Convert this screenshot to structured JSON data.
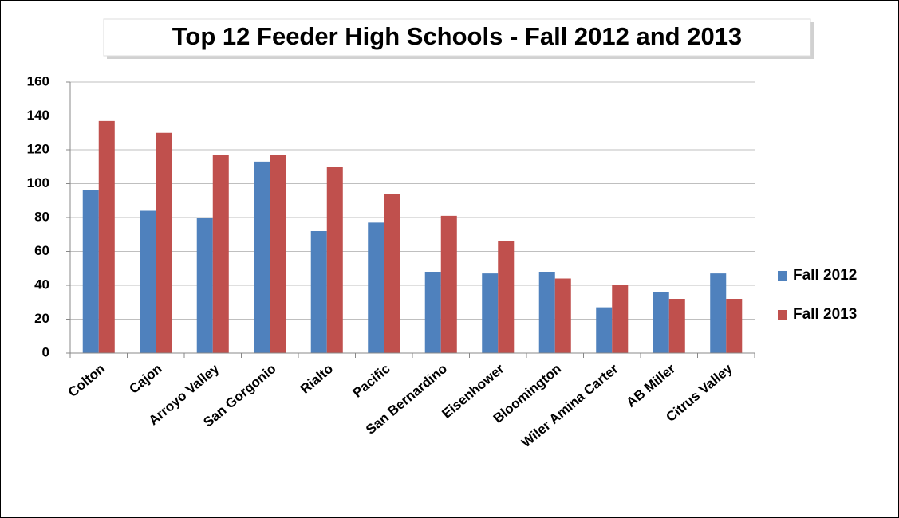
{
  "chart_data": {
    "type": "bar",
    "title": "Top 12 Feeder High Schools - Fall 2012 and 2013",
    "categories": [
      "Colton",
      "Cajon",
      "Arroyo Valley",
      "San Gorgonio",
      "Rialto",
      "Pacific",
      "San Bernardino",
      "Eisenhower",
      "Bloomington",
      "Wiler Amina Carter",
      "AB Miller",
      "Citrus Valley"
    ],
    "series": [
      {
        "name": "Fall 2012",
        "color": "#4f81bd",
        "values": [
          96,
          84,
          80,
          113,
          72,
          77,
          48,
          47,
          48,
          27,
          36,
          47
        ]
      },
      {
        "name": "Fall 2013",
        "color": "#c0504d",
        "values": [
          137,
          130,
          117,
          117,
          110,
          94,
          81,
          66,
          44,
          40,
          32,
          32
        ]
      }
    ],
    "ylim": [
      0,
      160
    ],
    "yticks": [
      0,
      20,
      40,
      60,
      80,
      100,
      120,
      140,
      160
    ],
    "grid": true,
    "legend": "right"
  }
}
